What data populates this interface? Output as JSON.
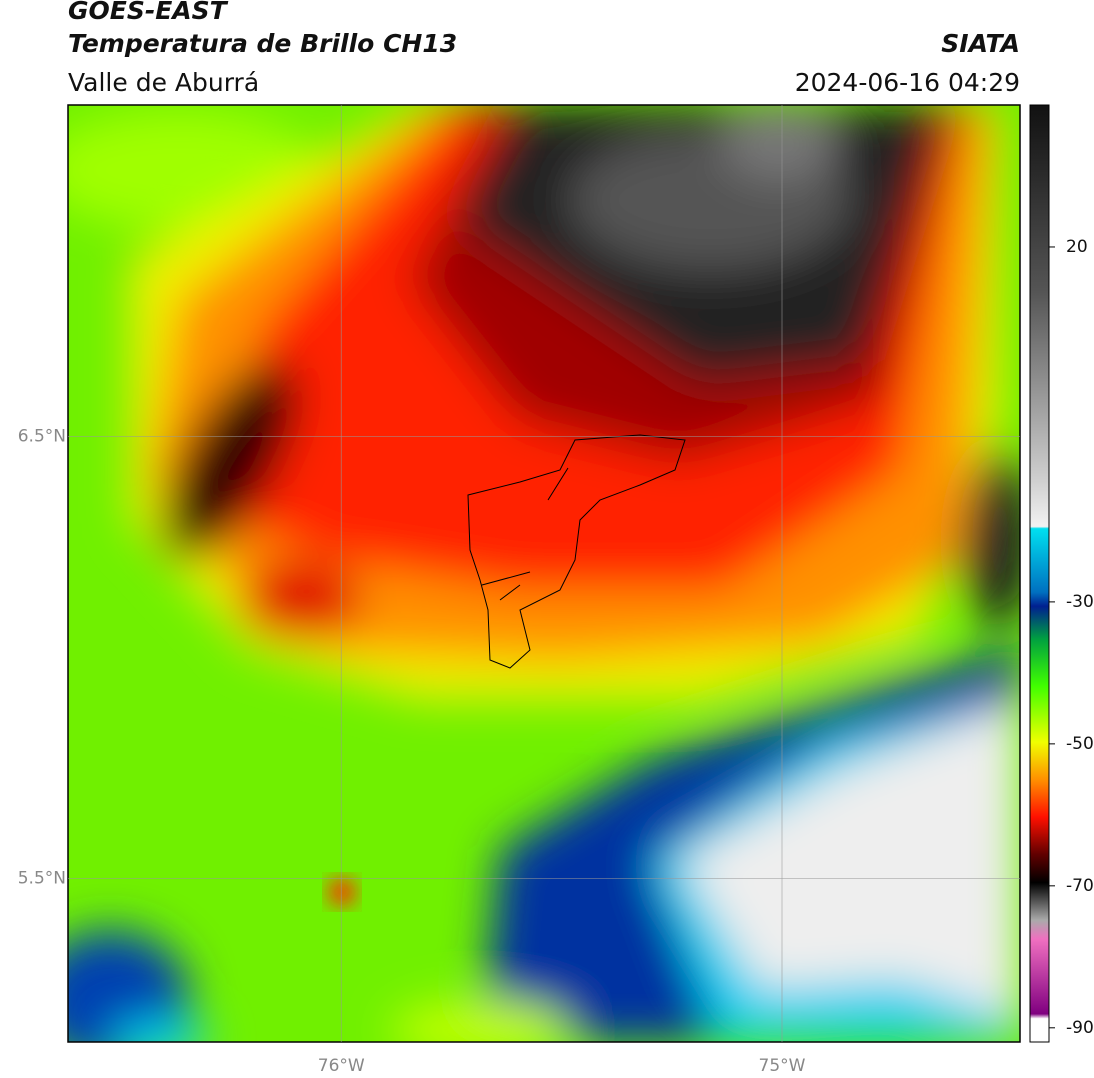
{
  "header": {
    "title": "GOES-EAST",
    "subtitle": "Temperatura de Brillo CH13",
    "region": "Valle de Aburrá",
    "source": "SIATA",
    "datetime": "2024-06-16 04:29"
  },
  "map": {
    "lat_range": [
      5.13,
      7.25
    ],
    "lon_range": [
      -76.62,
      -74.46
    ],
    "lat_ticks": [
      {
        "value": 6.5,
        "label": "6.5°N"
      },
      {
        "value": 5.5,
        "label": "5.5°N"
      }
    ],
    "lon_ticks": [
      {
        "value": -76,
        "label": "76°W"
      },
      {
        "value": -75,
        "label": "75°W"
      }
    ]
  },
  "colorbar": {
    "range": [
      -92,
      40
    ],
    "ticks": [
      20,
      -30,
      -50,
      -70,
      -90
    ]
  }
}
